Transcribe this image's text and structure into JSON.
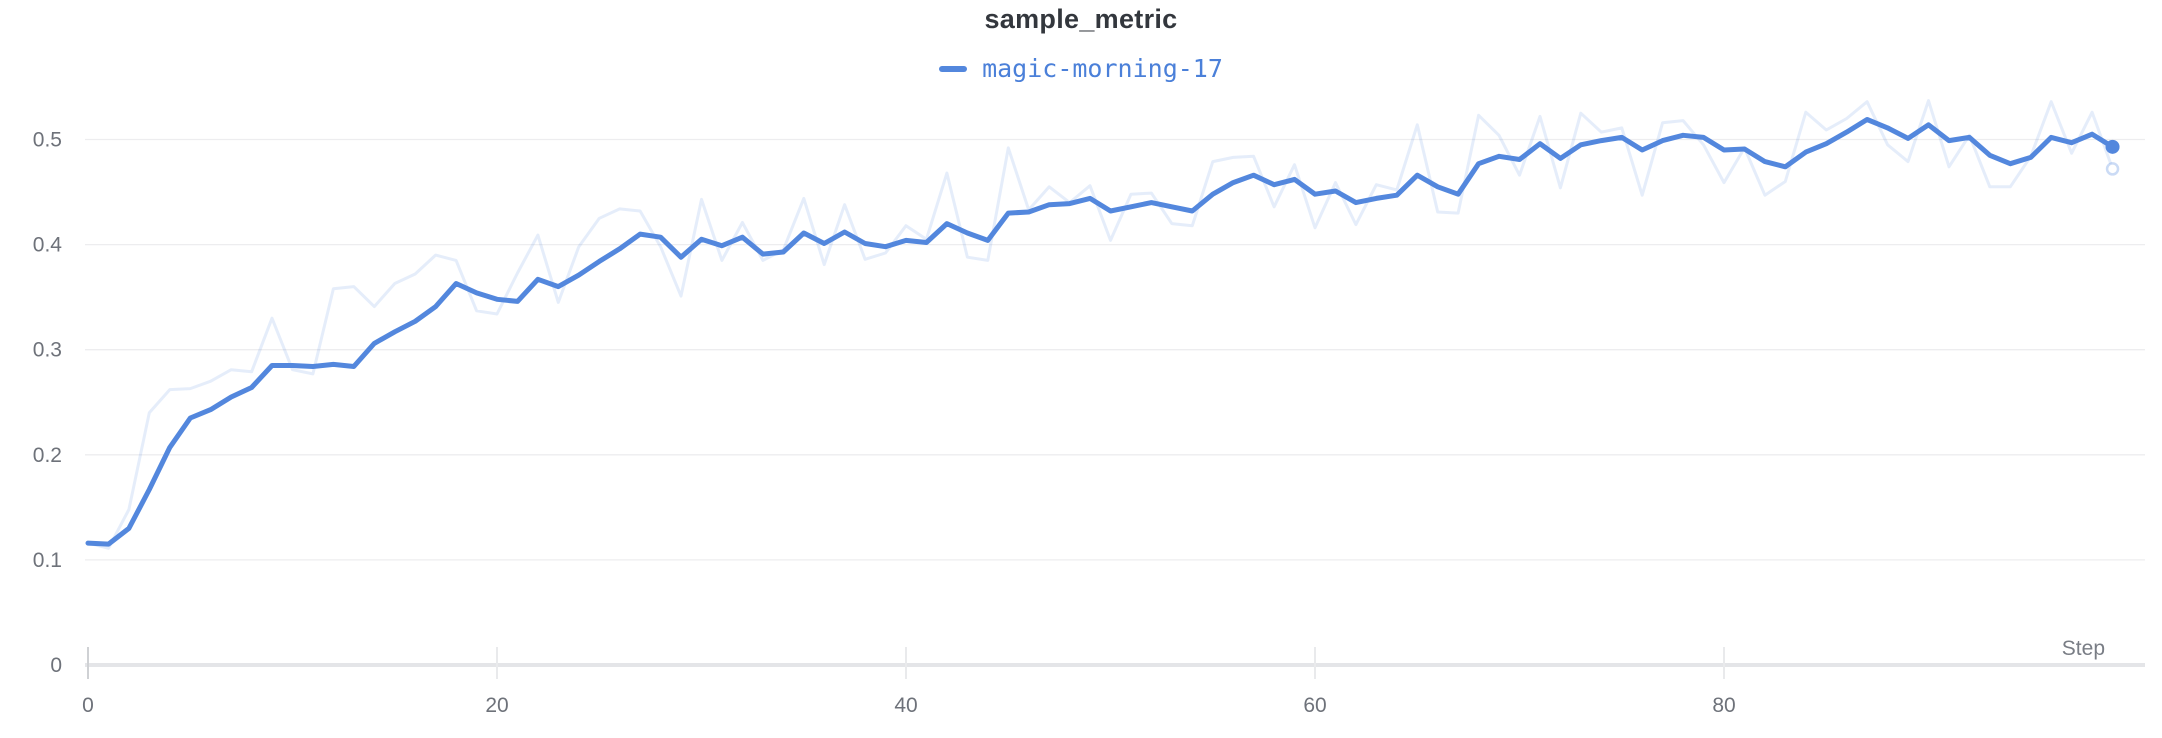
{
  "panel": {
    "title": "sample_metric",
    "legend": {
      "run_name": "magic-morning-17",
      "color": "#5387dd",
      "label_color": "#4b80d9"
    },
    "x_axis_label": "Step"
  },
  "colors": {
    "background": "#ffffff",
    "title_text": "#33373d",
    "axis_text": "#6e727a",
    "gridline": "#ededef",
    "axis_baseline": "#e4e5e8",
    "tick_stub": "#e9eaec",
    "origin_tick": "#cfd1d4",
    "smoothed_line": "#5387dd",
    "raw_line": "rgba(83,135,221,0.15)"
  },
  "chart_data": {
    "type": "line",
    "title": "sample_metric",
    "xlabel": "Step",
    "ylabel": "",
    "x_range": [
      0,
      99
    ],
    "ylim": [
      0,
      0.55
    ],
    "x_ticks": [
      0,
      20,
      40,
      60,
      80
    ],
    "x_tick_labels": [
      "0",
      "20",
      "40",
      "60",
      "80"
    ],
    "y_ticks": [
      0,
      0.1,
      0.2,
      0.3,
      0.4,
      0.5
    ],
    "y_tick_labels": [
      "0",
      "0.1",
      "0.2",
      "0.3",
      "0.4",
      "0.5"
    ],
    "grid": "horizontal-only",
    "legend_position": "top-center",
    "x": [
      0,
      1,
      2,
      3,
      4,
      5,
      6,
      7,
      8,
      9,
      10,
      11,
      12,
      13,
      14,
      15,
      16,
      17,
      18,
      19,
      20,
      21,
      22,
      23,
      24,
      25,
      26,
      27,
      28,
      29,
      30,
      31,
      32,
      33,
      34,
      35,
      36,
      37,
      38,
      39,
      40,
      41,
      42,
      43,
      44,
      45,
      46,
      47,
      48,
      49,
      50,
      51,
      52,
      53,
      54,
      55,
      56,
      57,
      58,
      59,
      60,
      61,
      62,
      63,
      64,
      65,
      66,
      67,
      68,
      69,
      70,
      71,
      72,
      73,
      74,
      75,
      76,
      77,
      78,
      79,
      80,
      81,
      82,
      83,
      84,
      85,
      86,
      87,
      88,
      89,
      90,
      91,
      92,
      93,
      94,
      95,
      96,
      97,
      98,
      99
    ],
    "series": [
      {
        "name": "magic-morning-17 (raw)",
        "role": "raw",
        "color": "rgba(83,135,221,0.15)",
        "end_marker": "open-circle",
        "values": [
          0.116,
          0.111,
          0.148,
          0.24,
          0.262,
          0.263,
          0.27,
          0.281,
          0.279,
          0.33,
          0.281,
          0.277,
          0.358,
          0.36,
          0.341,
          0.363,
          0.372,
          0.39,
          0.385,
          0.337,
          0.334,
          0.373,
          0.409,
          0.345,
          0.398,
          0.425,
          0.434,
          0.432,
          0.398,
          0.351,
          0.443,
          0.385,
          0.421,
          0.385,
          0.395,
          0.444,
          0.381,
          0.438,
          0.386,
          0.392,
          0.418,
          0.405,
          0.468,
          0.388,
          0.385,
          0.492,
          0.433,
          0.455,
          0.44,
          0.456,
          0.404,
          0.448,
          0.449,
          0.42,
          0.418,
          0.479,
          0.483,
          0.484,
          0.436,
          0.476,
          0.416,
          0.459,
          0.419,
          0.457,
          0.452,
          0.514,
          0.431,
          0.43,
          0.523,
          0.504,
          0.466,
          0.522,
          0.454,
          0.525,
          0.507,
          0.511,
          0.447,
          0.516,
          0.518,
          0.495,
          0.459,
          0.492,
          0.447,
          0.46,
          0.526,
          0.509,
          0.52,
          0.536,
          0.495,
          0.479,
          0.537,
          0.474,
          0.504,
          0.455,
          0.455,
          0.484,
          0.536,
          0.487,
          0.526,
          0.472
        ]
      },
      {
        "name": "magic-morning-17",
        "role": "smoothed",
        "color": "#5387dd",
        "end_marker": "dot",
        "values": [
          0.116,
          0.115,
          0.13,
          0.167,
          0.207,
          0.235,
          0.243,
          0.255,
          0.264,
          0.285,
          0.285,
          0.284,
          0.286,
          0.284,
          0.306,
          0.317,
          0.327,
          0.341,
          0.363,
          0.354,
          0.348,
          0.346,
          0.367,
          0.36,
          0.371,
          0.384,
          0.396,
          0.41,
          0.407,
          0.388,
          0.405,
          0.399,
          0.407,
          0.391,
          0.393,
          0.411,
          0.401,
          0.412,
          0.401,
          0.398,
          0.404,
          0.402,
          0.42,
          0.411,
          0.404,
          0.43,
          0.431,
          0.438,
          0.439,
          0.444,
          0.432,
          0.436,
          0.44,
          0.436,
          0.432,
          0.448,
          0.459,
          0.466,
          0.457,
          0.462,
          0.448,
          0.451,
          0.44,
          0.444,
          0.447,
          0.466,
          0.455,
          0.448,
          0.477,
          0.484,
          0.481,
          0.496,
          0.482,
          0.495,
          0.499,
          0.502,
          0.49,
          0.499,
          0.504,
          0.502,
          0.49,
          0.491,
          0.479,
          0.474,
          0.488,
          0.496,
          0.507,
          0.519,
          0.511,
          0.501,
          0.514,
          0.499,
          0.502,
          0.485,
          0.477,
          0.483,
          0.502,
          0.497,
          0.505,
          0.493
        ]
      }
    ]
  }
}
